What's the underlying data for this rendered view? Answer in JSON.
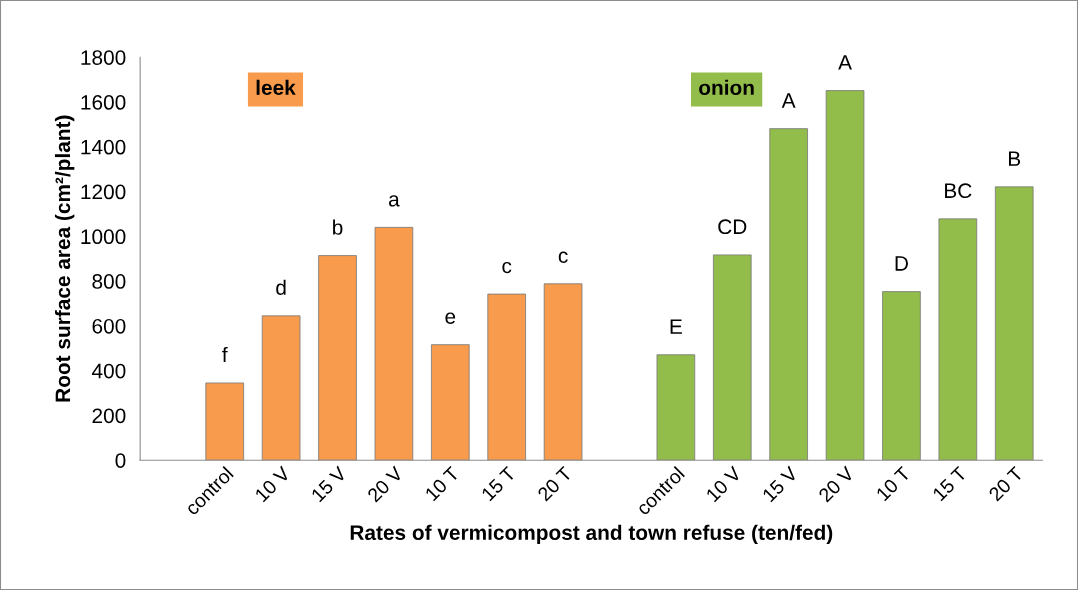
{
  "chart_data": {
    "type": "bar",
    "categories": [
      null,
      "control",
      "10 V",
      "15 V",
      "20 V",
      "10 T",
      "15 T",
      "20 T",
      null,
      "control",
      "10 V",
      "15 V",
      "20 V",
      "10 T",
      "15 T",
      "20 T"
    ],
    "series": [
      {
        "name": "leek",
        "color": "#f89b4c",
        "values": [
          null,
          345,
          645,
          914,
          1040,
          516,
          742,
          788,
          null,
          null,
          null,
          null,
          null,
          null,
          null,
          null
        ],
        "value_labels": [
          null,
          "f",
          "d",
          "b",
          "a",
          "e",
          "c",
          "c",
          null,
          null,
          null,
          null,
          null,
          null,
          null,
          null
        ]
      },
      {
        "name": "onion",
        "color": "#92bd4a",
        "values": [
          null,
          null,
          null,
          null,
          null,
          null,
          null,
          null,
          null,
          471,
          917,
          1481,
          1651,
          753,
          1078,
          1221
        ],
        "value_labels": [
          null,
          null,
          null,
          null,
          null,
          null,
          null,
          null,
          null,
          "E",
          "CD",
          "A",
          "A",
          "D",
          "BC",
          "B"
        ]
      }
    ],
    "xlabel": "Rates of vermicompost and town refuse (ten/fed)",
    "ylabel": "Root surface area (cm²/plant)",
    "ylim": [
      0,
      1800
    ],
    "yticks": [
      0,
      200,
      400,
      600,
      800,
      1000,
      1200,
      1400,
      1600,
      1800
    ],
    "grid": false,
    "legend": false
  }
}
